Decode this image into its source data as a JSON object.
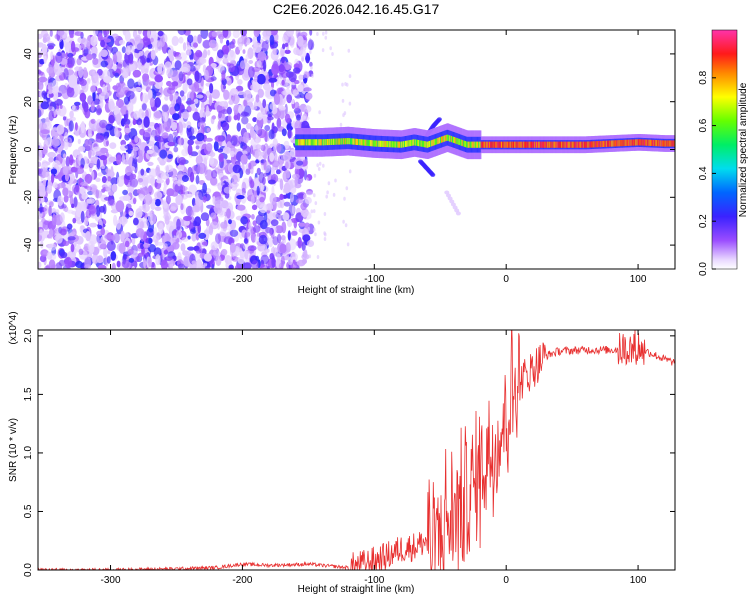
{
  "title": "C2E6.2026.042.16.45.G17",
  "chart_data": [
    {
      "type": "heatmap",
      "title": "",
      "xlabel": "Height of straight line (km)",
      "ylabel": "Frequency (Hz)",
      "xlim": [
        -355,
        128
      ],
      "ylim": [
        -50,
        50
      ],
      "x_ticks": [
        -300,
        -200,
        -100,
        0,
        100
      ],
      "y_ticks": [
        -40,
        -20,
        0,
        20,
        40
      ],
      "colorbar": {
        "label": "Normalized spectral amplitude",
        "range": [
          0,
          1
        ],
        "ticks": [
          0.0,
          0.2,
          0.4,
          0.6,
          0.8
        ],
        "colormap": "rainbow (white-violet-blue-cyan-green-yellow-red-magenta)"
      },
      "noise_region": {
        "x_range": [
          -355,
          -148
        ],
        "y_range": [
          -50,
          50
        ]
      },
      "signal_ridge": {
        "x": [
          -160,
          -140,
          -120,
          -100,
          -80,
          -70,
          -60,
          -55,
          -50,
          -45,
          -40,
          -30,
          -20,
          -10,
          0,
          20,
          40,
          60,
          80,
          100,
          120,
          128
        ],
        "y": [
          3,
          3,
          3.5,
          2.5,
          2,
          3,
          2,
          3,
          4,
          5,
          4,
          2,
          2,
          2,
          2,
          2,
          2,
          2,
          2.5,
          3,
          2.5,
          2.5
        ]
      },
      "faint_branches": [
        {
          "x": [
            -60,
            -55,
            -50
          ],
          "y": [
            6,
            10,
            13
          ]
        },
        {
          "x": [
            -65,
            -60,
            -55
          ],
          "y": [
            -5,
            -8,
            -11
          ]
        },
        {
          "x": [
            -45,
            -35
          ],
          "y": [
            -18,
            -28
          ]
        }
      ]
    },
    {
      "type": "line",
      "title": "",
      "xlabel": "Height of straight line (km)",
      "ylabel": "SNR (10 * v/v)",
      "y_multiplier": "(x10^4)",
      "xlim": [
        -355,
        128
      ],
      "ylim": [
        0,
        2.05
      ],
      "x_ticks": [
        -300,
        -200,
        -100,
        0,
        100
      ],
      "y_ticks": [
        0.0,
        0.5,
        1.0,
        1.5,
        2.0
      ],
      "series": [
        {
          "color": "#e83030",
          "x": [
            -355,
            -300,
            -250,
            -220,
            -200,
            -180,
            -150,
            -120,
            -105,
            -100,
            -90,
            -80,
            -70,
            -60,
            -50,
            -45,
            -40,
            -35,
            -30,
            -25,
            -20,
            -15,
            -10,
            -5,
            0,
            5,
            10,
            20,
            30,
            40,
            60,
            80,
            90,
            100,
            110,
            120,
            128
          ],
          "y": [
            0.0,
            0.0,
            0.01,
            0.02,
            0.05,
            0.04,
            0.05,
            0.02,
            0.06,
            0.08,
            0.12,
            0.18,
            0.2,
            0.25,
            0.3,
            0.4,
            0.45,
            0.55,
            0.6,
            0.7,
            0.85,
            1.0,
            1.05,
            1.15,
            1.35,
            1.5,
            1.6,
            1.72,
            1.83,
            1.87,
            1.88,
            1.88,
            1.89,
            1.9,
            1.85,
            1.8,
            1.77
          ]
        }
      ]
    }
  ]
}
